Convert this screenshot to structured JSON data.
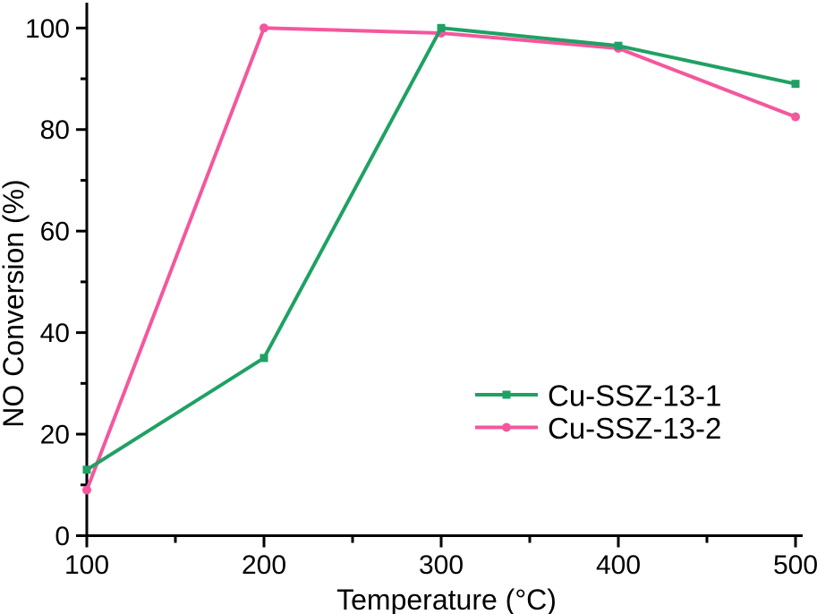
{
  "chart_data": {
    "type": "line",
    "title": "",
    "xlabel": "Temperature (°C)",
    "ylabel": "NO Conversion (%)",
    "x": [
      100,
      200,
      300,
      400,
      500
    ],
    "series": [
      {
        "name": "Cu-SSZ-13-1",
        "color": "#1FA163",
        "marker": "square",
        "values": [
          13,
          35,
          100,
          96.5,
          89
        ]
      },
      {
        "name": "Cu-SSZ-13-2",
        "color": "#F4579D",
        "marker": "circle",
        "values": [
          9,
          100,
          99,
          96,
          82.5
        ]
      }
    ],
    "xlim": [
      100,
      500
    ],
    "ylim": [
      0,
      100
    ],
    "x_major_ticks": [
      100,
      200,
      300,
      400,
      500
    ],
    "x_minor_ticks": [
      150,
      250,
      350,
      450
    ],
    "y_major_ticks": [
      0,
      20,
      40,
      60,
      80,
      100
    ],
    "y_minor_ticks": [
      10,
      30,
      50,
      70,
      90
    ],
    "grid": false,
    "legend_position": "lower right",
    "axis_color": "#000000",
    "background_color": "#ffffff"
  }
}
